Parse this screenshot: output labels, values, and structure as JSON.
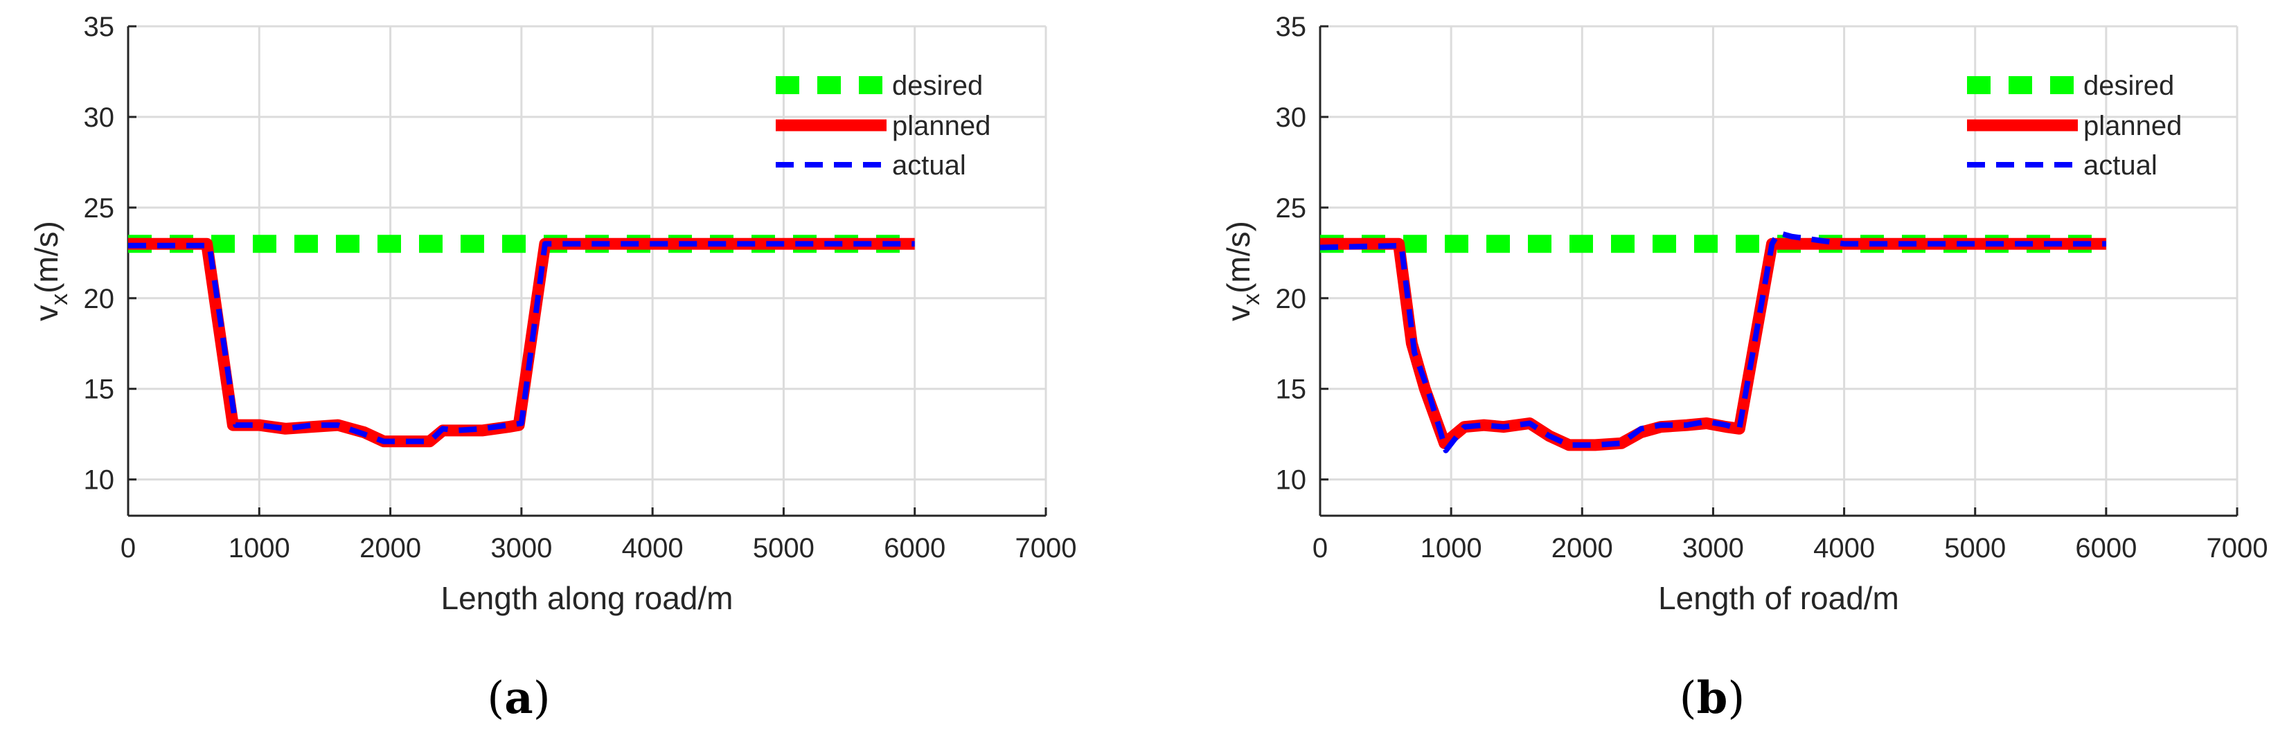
{
  "colors": {
    "desired": "#00ff00",
    "planned": "#ff0000",
    "actual": "#0000ff",
    "grid": "#dcdcdc",
    "axis": "#262626"
  },
  "chart_data": [
    {
      "type": "line",
      "panel_label": "a",
      "xlabel": "Length along road/m",
      "ylabel": "v_x(m/s)",
      "ylabel_main": "v",
      "ylabel_sub": "x",
      "ylabel_unit": "(m/s)",
      "xlim": [
        0,
        7000
      ],
      "ylim": [
        8,
        35
      ],
      "xticks": [
        0,
        1000,
        2000,
        3000,
        4000,
        5000,
        6000,
        7000
      ],
      "yticks": [
        10,
        15,
        20,
        25,
        30,
        35
      ],
      "grid": true,
      "legend": "top-right",
      "series": [
        {
          "name": "desired",
          "x": [
            0,
            6000
          ],
          "y": [
            23,
            23
          ]
        },
        {
          "name": "planned",
          "x": [
            0,
            600,
            800,
            1000,
            1200,
            1400,
            1600,
            1800,
            1950,
            2100,
            2300,
            2400,
            2500,
            2700,
            2900,
            2980,
            3180,
            3400,
            4000,
            5000,
            6000
          ],
          "y": [
            23,
            23,
            13,
            13,
            12.8,
            12.9,
            13,
            12.6,
            12.1,
            12.1,
            12.1,
            12.7,
            12.7,
            12.7,
            12.9,
            13,
            23,
            23,
            23,
            23,
            23
          ]
        },
        {
          "name": "actual",
          "x": [
            0,
            620,
            820,
            1000,
            1200,
            1400,
            1600,
            1800,
            1950,
            2100,
            2300,
            2400,
            2500,
            2700,
            2900,
            3000,
            3180,
            3400,
            4000,
            5000,
            6000
          ],
          "y": [
            22.9,
            22.9,
            13,
            13,
            12.8,
            13,
            13,
            12.5,
            12.1,
            12.1,
            12.1,
            12.8,
            12.7,
            12.8,
            13,
            13.1,
            23,
            23,
            23,
            23,
            23
          ]
        }
      ]
    },
    {
      "type": "line",
      "panel_label": "b",
      "xlabel": "Length of road/m",
      "ylabel": "v_x(m/s)",
      "ylabel_main": "v",
      "ylabel_sub": "x",
      "ylabel_unit": "(m/s)",
      "xlim": [
        0,
        7000
      ],
      "ylim": [
        8,
        35
      ],
      "xticks": [
        0,
        1000,
        2000,
        3000,
        4000,
        5000,
        6000,
        7000
      ],
      "yticks": [
        10,
        15,
        20,
        25,
        30,
        35
      ],
      "grid": true,
      "legend": "top-right",
      "series": [
        {
          "name": "desired",
          "x": [
            0,
            6000
          ],
          "y": [
            23,
            23
          ]
        },
        {
          "name": "planned",
          "x": [
            0,
            600,
            700,
            800,
            900,
            950,
            1100,
            1250,
            1400,
            1600,
            1750,
            1900,
            2100,
            2300,
            2450,
            2600,
            2800,
            2950,
            3100,
            3200,
            3450,
            3600,
            4000,
            5000,
            6000
          ],
          "y": [
            23,
            23,
            17.5,
            15,
            13,
            12,
            12.9,
            13,
            12.9,
            13.1,
            12.4,
            11.9,
            11.9,
            12,
            12.6,
            12.9,
            13,
            13.1,
            12.9,
            12.8,
            23,
            23,
            23,
            23,
            23
          ]
        },
        {
          "name": "actual",
          "x": [
            0,
            620,
            720,
            820,
            920,
            960,
            1100,
            1250,
            1400,
            1600,
            1750,
            1900,
            2100,
            2300,
            2450,
            2600,
            2800,
            2950,
            3100,
            3200,
            3450,
            3500,
            3600,
            3800,
            4000,
            5000,
            6000
          ],
          "y": [
            22.8,
            22.9,
            17,
            15,
            12.6,
            11.6,
            12.9,
            13,
            12.9,
            13.1,
            12.4,
            11.9,
            11.9,
            12,
            12.8,
            13,
            13,
            13.2,
            13,
            12.8,
            23,
            23.6,
            23.4,
            23.2,
            23,
            23,
            23
          ]
        }
      ]
    }
  ]
}
